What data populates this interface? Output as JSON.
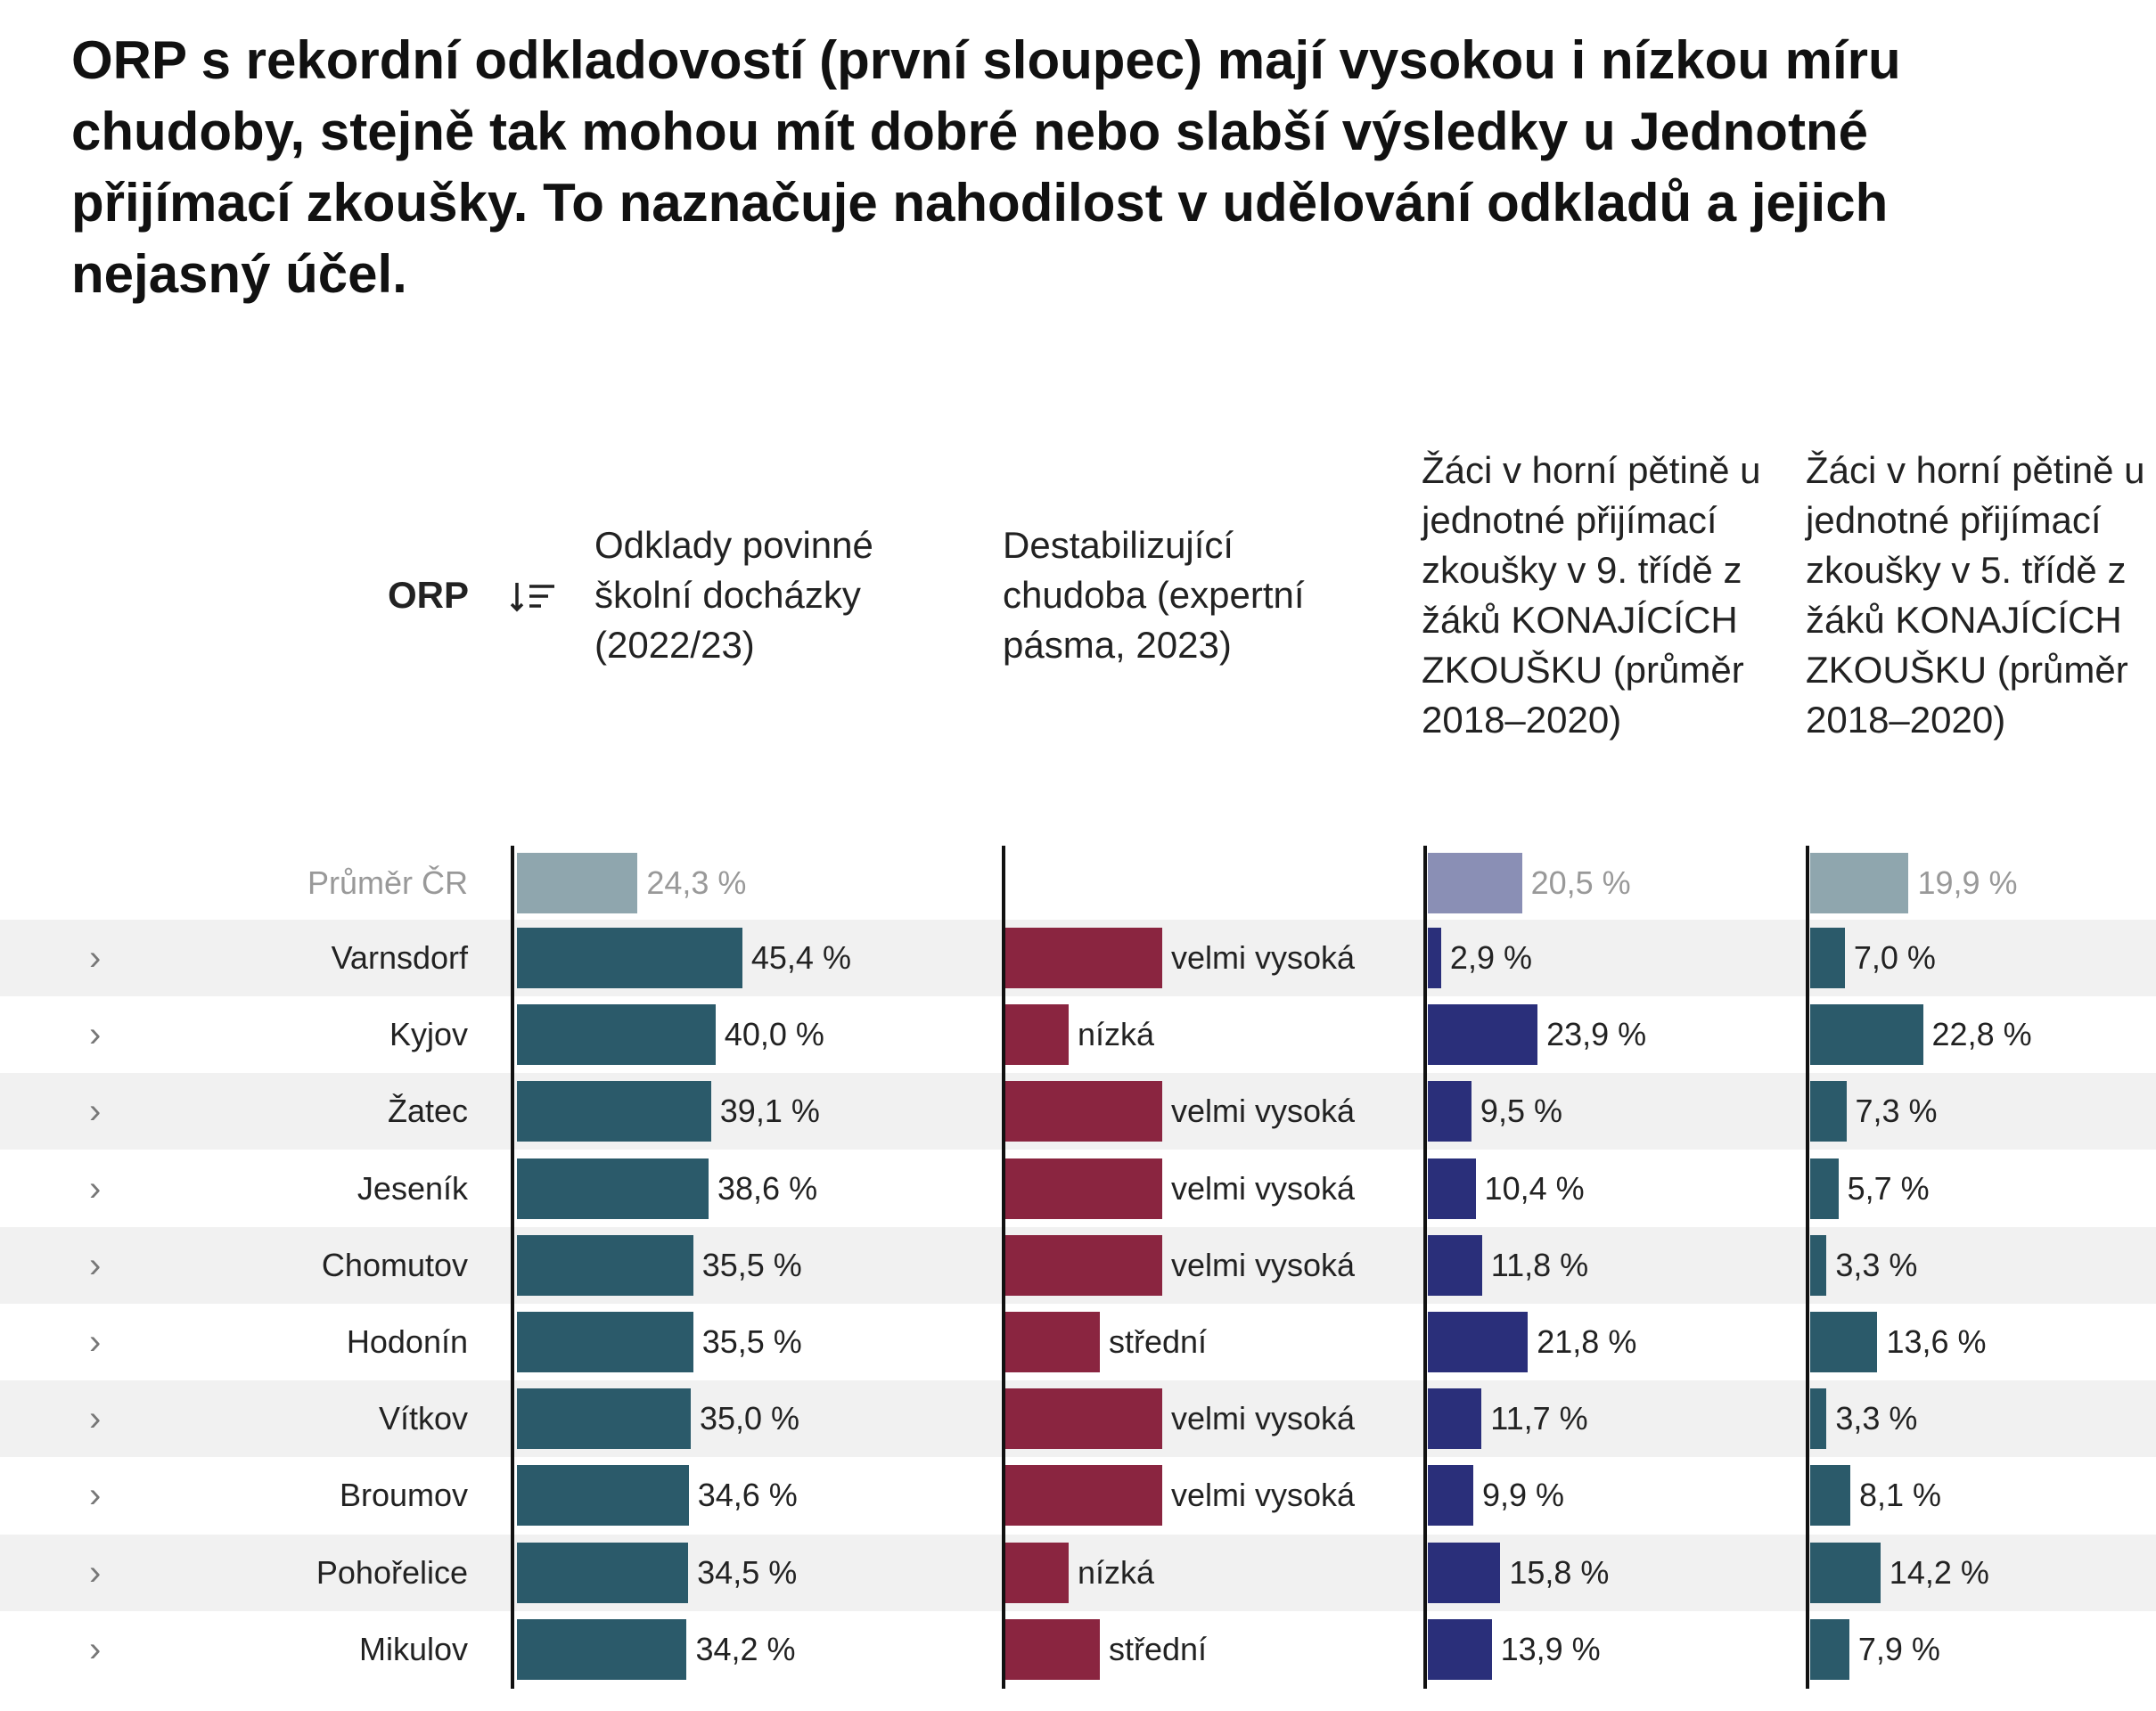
{
  "title": "ORP s rekordní odkladovostí (první sloupec) mají vysokou i nízkou míru chudoby, stejně tak mohou mít dobré nebo slabší výsledky u Jednotné přijímací zkoušky. To naznačuje nahodilost v udělování odkladů a jejich nejasný účel.",
  "table": {
    "headers": [
      "ORP",
      "Odklady povinné školní docházky (2022/23)",
      "Destabilizující chudoba (expertní pásma, 2023)",
      "Žáci v horní pětině u jednotné přijímací zkoušky v 9. třídě z žáků KONAJÍCÍCH ZKOUŠKU (průměr 2018–2020)",
      "Žáci v horní pětině u jednotné přijímací zkoušky v 5. třídě z žáků KONAJÍCÍCH ZKOUŠKU (průměr 2018–2020)"
    ],
    "average": {
      "name": "Průměr ČR",
      "odklady": 24.3,
      "odklady_label": "24,3 %",
      "zk9": 20.5,
      "zk9_label": "20,5 %",
      "zk5": 19.9,
      "zk5_label": "19,9 %"
    },
    "rows": [
      {
        "name": "Varnsdorf",
        "odklady": 45.4,
        "odklady_label": "45,4 %",
        "chudoba": "velmi vysoká",
        "zk9": 2.9,
        "zk9_label": "2,9 %",
        "zk5": 7.0,
        "zk5_label": "7,0 %"
      },
      {
        "name": "Kyjov",
        "odklady": 40.0,
        "odklady_label": "40,0 %",
        "chudoba": "nízká",
        "zk9": 23.9,
        "zk9_label": "23,9 %",
        "zk5": 22.8,
        "zk5_label": "22,8 %"
      },
      {
        "name": "Žatec",
        "odklady": 39.1,
        "odklady_label": "39,1 %",
        "chudoba": "velmi vysoká",
        "zk9": 9.5,
        "zk9_label": "9,5 %",
        "zk5": 7.3,
        "zk5_label": "7,3 %"
      },
      {
        "name": "Jeseník",
        "odklady": 38.6,
        "odklady_label": "38,6 %",
        "chudoba": "velmi vysoká",
        "zk9": 10.4,
        "zk9_label": "10,4 %",
        "zk5": 5.7,
        "zk5_label": "5,7 %"
      },
      {
        "name": "Chomutov",
        "odklady": 35.5,
        "odklady_label": "35,5 %",
        "chudoba": "velmi vysoká",
        "zk9": 11.8,
        "zk9_label": "11,8 %",
        "zk5": 3.3,
        "zk5_label": "3,3 %"
      },
      {
        "name": "Hodonín",
        "odklady": 35.5,
        "odklady_label": "35,5 %",
        "chudoba": "střední",
        "zk9": 21.8,
        "zk9_label": "21,8 %",
        "zk5": 13.6,
        "zk5_label": "13,6 %"
      },
      {
        "name": "Vítkov",
        "odklady": 35.0,
        "odklady_label": "35,0 %",
        "chudoba": "velmi vysoká",
        "zk9": 11.7,
        "zk9_label": "11,7 %",
        "zk5": 3.3,
        "zk5_label": "3,3 %"
      },
      {
        "name": "Broumov",
        "odklady": 34.6,
        "odklady_label": "34,6 %",
        "chudoba": "velmi vysoká",
        "zk9": 9.9,
        "zk9_label": "9,9 %",
        "zk5": 8.1,
        "zk5_label": "8,1 %"
      },
      {
        "name": "Pohořelice",
        "odklady": 34.5,
        "odklady_label": "34,5 %",
        "chudoba": "nízká",
        "zk9": 15.8,
        "zk9_label": "15,8 %",
        "zk5": 14.2,
        "zk5_label": "14,2 %"
      },
      {
        "name": "Mikulov",
        "odklady": 34.2,
        "odklady_label": "34,2 %",
        "chudoba": "střední",
        "zk9": 13.9,
        "zk9_label": "13,9 %",
        "zk5": 7.9,
        "zk5_label": "7,9 %"
      }
    ]
  }
}
